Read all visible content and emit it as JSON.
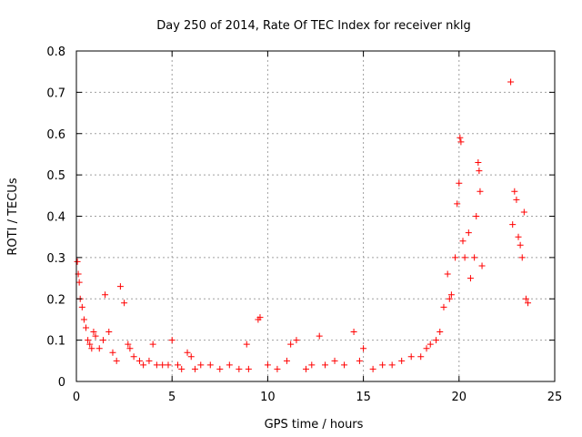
{
  "chart_data": {
    "type": "scatter",
    "title": "Day 250 of 2014, Rate Of TEC Index for receiver nklg",
    "xlabel": "GPS time / hours",
    "ylabel": "ROTI / TECUs",
    "xlim": [
      0,
      25
    ],
    "ylim": [
      0,
      0.8
    ],
    "xticks": [
      "0",
      "5",
      "10",
      "15",
      "20",
      "25"
    ],
    "yticks": [
      "0",
      "0.1",
      "0.2",
      "0.3",
      "0.4",
      "0.5",
      "0.6",
      "0.7",
      "0.8"
    ],
    "grid": true,
    "marker": "+",
    "color": "#ff0000",
    "series": [
      {
        "x": [
          0.05,
          0.1,
          0.15,
          0.2,
          0.3,
          0.4,
          0.5,
          0.6,
          0.7,
          0.8,
          0.9,
          1.0,
          1.2,
          1.4,
          1.5,
          1.7,
          1.9,
          2.1,
          2.3,
          2.5,
          2.7,
          2.8,
          3.0,
          3.3,
          3.5,
          3.8,
          4.0,
          4.2,
          4.5,
          4.8,
          5.0,
          5.3,
          5.5,
          5.8,
          6.0,
          6.2,
          6.5,
          7.0,
          7.5,
          8.0,
          8.5,
          8.9,
          9.0,
          9.5,
          9.6,
          10.0,
          10.5,
          11.0,
          11.2,
          11.5,
          12.0,
          12.3,
          12.7,
          13.0,
          13.5,
          14.0,
          14.5,
          14.8,
          15.0,
          15.5,
          16.0,
          16.5,
          17.0,
          17.5,
          18.0,
          18.3,
          18.5,
          18.8,
          19.0,
          19.2,
          19.4,
          19.5,
          19.6,
          19.8,
          19.9,
          20.0,
          20.05,
          20.1,
          20.2,
          20.3,
          20.5,
          20.6,
          20.8,
          20.9,
          21.0,
          21.05,
          21.1,
          21.2,
          22.7,
          22.8,
          22.9,
          23.0,
          23.1,
          23.2,
          23.3,
          23.4,
          23.5,
          23.6
        ],
        "y": [
          0.29,
          0.26,
          0.24,
          0.2,
          0.18,
          0.15,
          0.13,
          0.1,
          0.09,
          0.08,
          0.12,
          0.11,
          0.08,
          0.1,
          0.21,
          0.12,
          0.07,
          0.05,
          0.23,
          0.19,
          0.09,
          0.08,
          0.06,
          0.05,
          0.04,
          0.05,
          0.09,
          0.04,
          0.04,
          0.04,
          0.1,
          0.04,
          0.03,
          0.07,
          0.06,
          0.03,
          0.04,
          0.04,
          0.03,
          0.04,
          0.03,
          0.09,
          0.03,
          0.15,
          0.155,
          0.04,
          0.03,
          0.05,
          0.09,
          0.1,
          0.03,
          0.04,
          0.11,
          0.04,
          0.05,
          0.04,
          0.12,
          0.05,
          0.08,
          0.03,
          0.04,
          0.04,
          0.05,
          0.06,
          0.06,
          0.08,
          0.09,
          0.1,
          0.12,
          0.18,
          0.26,
          0.2,
          0.21,
          0.3,
          0.43,
          0.48,
          0.59,
          0.58,
          0.34,
          0.3,
          0.36,
          0.25,
          0.3,
          0.4,
          0.53,
          0.51,
          0.46,
          0.28,
          0.725,
          0.38,
          0.46,
          0.44,
          0.35,
          0.33,
          0.3,
          0.41,
          0.2,
          0.19
        ]
      }
    ]
  }
}
